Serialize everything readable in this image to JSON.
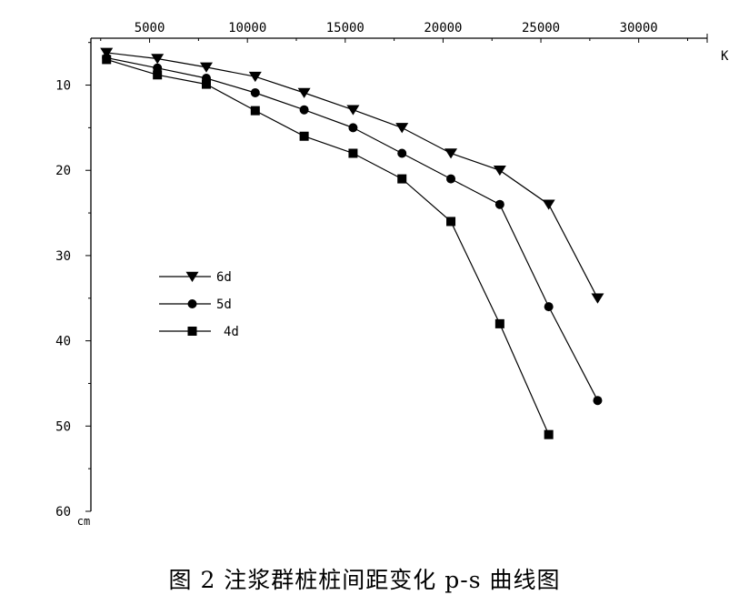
{
  "caption": "图 2 注浆群桩桩间距变化 p-s 曲线图",
  "chart_data": {
    "type": "line",
    "title": "",
    "xlabel": "K",
    "ylabel": "cm",
    "x_axis_position": "top",
    "y_axis_inverted": true,
    "xlim": [
      2000,
      33500
    ],
    "ylim": [
      4.5,
      60
    ],
    "x_ticks": [
      5000,
      10000,
      15000,
      20000,
      25000,
      30000
    ],
    "y_ticks": [
      10,
      20,
      30,
      40,
      50,
      60
    ],
    "legend_position": "center-left",
    "grid": false,
    "series": [
      {
        "name": "6d",
        "marker": "triangle-down",
        "points": [
          [
            2800,
            6.2
          ],
          [
            5400,
            6.9
          ],
          [
            7900,
            7.9
          ],
          [
            10400,
            9.0
          ],
          [
            12900,
            10.9
          ],
          [
            15400,
            12.9
          ],
          [
            17900,
            15.0
          ],
          [
            20400,
            18.0
          ],
          [
            22900,
            20.0
          ],
          [
            25400,
            24.0
          ],
          [
            27900,
            35.0
          ]
        ]
      },
      {
        "name": "5d",
        "marker": "diamond",
        "points": [
          [
            2800,
            6.8
          ],
          [
            5400,
            8.0
          ],
          [
            7900,
            9.2
          ],
          [
            10400,
            10.9
          ],
          [
            12900,
            12.9
          ],
          [
            15400,
            15.0
          ],
          [
            17900,
            18.0
          ],
          [
            20400,
            21.0
          ],
          [
            22900,
            24.0
          ],
          [
            25400,
            36.0
          ],
          [
            27900,
            47.0
          ]
        ]
      },
      {
        "name": "4d",
        "marker": "square",
        "points": [
          [
            2800,
            7.0
          ],
          [
            5400,
            8.8
          ],
          [
            7900,
            9.9
          ],
          [
            10400,
            13.0
          ],
          [
            12900,
            16.0
          ],
          [
            15400,
            18.0
          ],
          [
            17900,
            21.0
          ],
          [
            20400,
            26.0
          ],
          [
            22900,
            38.0
          ],
          [
            25400,
            51.0
          ]
        ]
      }
    ]
  }
}
